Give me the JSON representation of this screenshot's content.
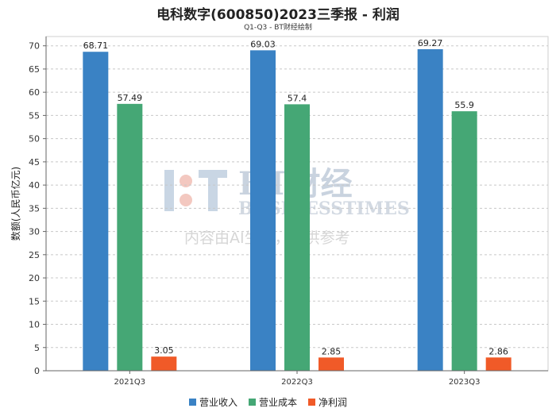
{
  "title": "电科数字(600850)2023三季报 - 利润",
  "subtitle": "Q1-Q3 - BT财经绘制",
  "watermark": {
    "brand": "BT财经",
    "brand_en": "BUSINESSTIMES",
    "notice": "内容由AI生成，仅供参考"
  },
  "chart_data": {
    "type": "bar",
    "categories": [
      "2021Q3",
      "2022Q3",
      "2023Q3"
    ],
    "series": [
      {
        "name": "营业收入",
        "color": "#3a82c4",
        "values": [
          68.71,
          69.03,
          69.27
        ]
      },
      {
        "name": "营业成本",
        "color": "#45a775",
        "values": [
          57.49,
          57.4,
          55.9
        ]
      },
      {
        "name": "净利润",
        "color": "#f05a28",
        "values": [
          3.05,
          2.85,
          2.86
        ]
      }
    ],
    "ylabel": "数额(人民币亿元)",
    "ylim": [
      0,
      72
    ],
    "yticks": [
      0,
      5,
      10,
      15,
      20,
      25,
      30,
      35,
      40,
      45,
      50,
      55,
      60,
      65,
      70
    ],
    "grid": true,
    "legend": "bottom-center"
  }
}
